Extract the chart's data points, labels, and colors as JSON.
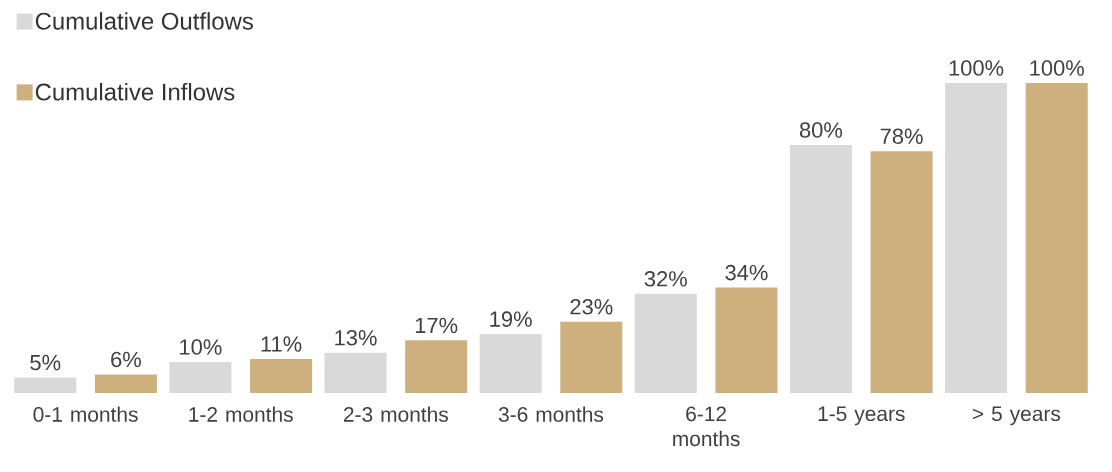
{
  "chart_data": {
    "type": "bar",
    "categories": [
      "0-1 months",
      "1-2 months",
      "2-3 months",
      "3-6 months",
      "6-12 months",
      "1-5 years",
      "> 5 years"
    ],
    "series": [
      {
        "name": "Cumulative Outflows",
        "color": "#d9d9d9",
        "values": [
          5,
          10,
          13,
          19,
          32,
          80,
          100
        ],
        "value_labels": [
          "5%",
          "10%",
          "13%",
          "19%",
          "32%",
          "80%",
          "100%"
        ]
      },
      {
        "name": "Cumulative Inflows",
        "color": "#cdb07e",
        "values": [
          6,
          11,
          17,
          23,
          34,
          78,
          100
        ],
        "value_labels": [
          "6%",
          "11%",
          "17%",
          "23%",
          "34%",
          "78%",
          "100%"
        ]
      }
    ],
    "legend": "top left",
    "grid": false
  }
}
